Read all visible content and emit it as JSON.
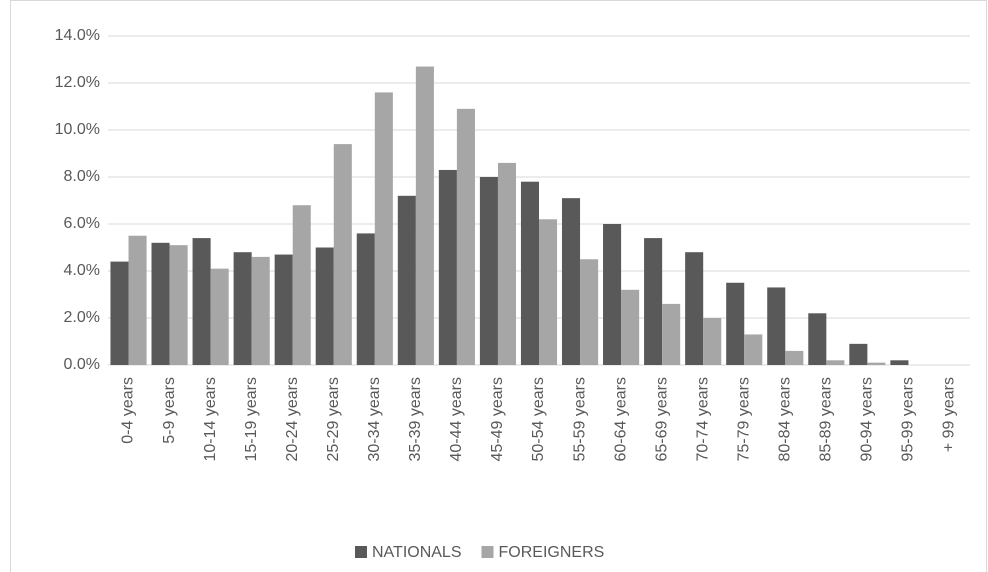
{
  "chart_data": {
    "type": "bar",
    "categories": [
      "0-4 years",
      "5-9 years",
      "10-14 years",
      "15-19 years",
      "20-24 years",
      "25-29 years",
      "30-34 years",
      "35-39 years",
      "40-44 years",
      "45-49 years",
      "50-54 years",
      "55-59 years",
      "60-64 years",
      "65-69 years",
      "70-74 years",
      "75-79 years",
      "80-84 years",
      "85-89 years",
      "90-94 years",
      "95-99 years",
      "+ 99 years"
    ],
    "series": [
      {
        "name": "NATIONALS",
        "color": "#595959",
        "values": [
          4.4,
          5.2,
          5.4,
          4.8,
          4.7,
          5.0,
          5.6,
          7.2,
          8.3,
          8.0,
          7.8,
          7.1,
          6.0,
          5.4,
          4.8,
          3.5,
          3.3,
          2.2,
          0.9,
          0.2,
          0.0
        ]
      },
      {
        "name": "FOREIGNERS",
        "color": "#a6a6a6",
        "values": [
          5.5,
          5.1,
          4.1,
          4.6,
          6.8,
          9.4,
          11.6,
          12.7,
          10.9,
          8.6,
          6.2,
          4.5,
          3.2,
          2.6,
          2.0,
          1.3,
          0.6,
          0.2,
          0.1,
          0.0,
          0.0
        ]
      }
    ],
    "ylim": [
      0,
      14
    ],
    "yticks": [
      {
        "value": 0,
        "label": "0.0%"
      },
      {
        "value": 2,
        "label": "2.0%"
      },
      {
        "value": 4,
        "label": "4.0%"
      },
      {
        "value": 6,
        "label": "6.0%"
      },
      {
        "value": 8,
        "label": "8.0%"
      },
      {
        "value": 10,
        "label": "10.0%"
      },
      {
        "value": 12,
        "label": "12.0%"
      },
      {
        "value": 14,
        "label": "14.0%"
      }
    ],
    "grid": true,
    "legend": "bottom"
  }
}
